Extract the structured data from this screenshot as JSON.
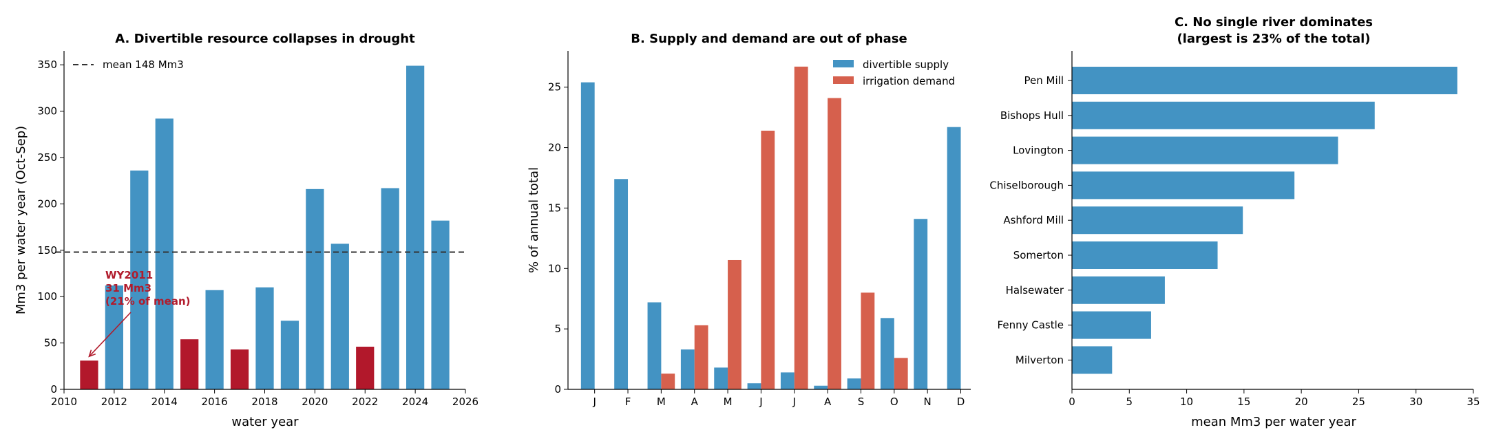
{
  "colors": {
    "wet_bar": "#4393c3",
    "drought_bar": "#b2182b",
    "supply": "#4393c3",
    "demand": "#d6604d",
    "mean_line": "#333333"
  },
  "chart_data": [
    {
      "type": "bar",
      "title": "A. Divertible resource collapses in drought",
      "xlabel": "water year",
      "ylabel": "Mm3 per water year (Oct-Sep)",
      "xlim": [
        2010,
        2026
      ],
      "ylim": [
        0,
        365
      ],
      "xticks": [
        "2010",
        "2012",
        "2014",
        "2016",
        "2018",
        "2020",
        "2022",
        "2024",
        "2026"
      ],
      "yticks": [
        "0",
        "50",
        "100",
        "150",
        "200",
        "250",
        "300",
        "350"
      ],
      "x": [
        2011,
        2012,
        2013,
        2014,
        2015,
        2016,
        2017,
        2018,
        2019,
        2020,
        2021,
        2022,
        2023,
        2024,
        2025
      ],
      "values": [
        31,
        112,
        236,
        292,
        54,
        107,
        43,
        110,
        74,
        216,
        157,
        46,
        217,
        349,
        182
      ],
      "drought_years": [
        2011,
        2015,
        2017,
        2022
      ],
      "reference_line": {
        "value": 148,
        "label": "mean 148 Mm3"
      },
      "legend_position": "upper left",
      "annotation": {
        "lines": [
          "WY2011",
          "31 Mm3",
          "(21% of mean)"
        ],
        "target_x": 2011,
        "target_y": 31
      }
    },
    {
      "type": "bar",
      "title": "B. Supply and demand are out of phase",
      "xlabel": "",
      "ylabel": "% of annual total",
      "ylim": [
        0,
        28
      ],
      "yticks": [
        "0",
        "5",
        "10",
        "15",
        "20",
        "25"
      ],
      "categories": [
        "J",
        "F",
        "M",
        "A",
        "M",
        "J",
        "J",
        "A",
        "S",
        "O",
        "N",
        "D"
      ],
      "series": [
        {
          "name": "divertible supply",
          "values": [
            25.4,
            17.4,
            7.2,
            3.3,
            1.8,
            0.5,
            1.4,
            0.3,
            0.9,
            5.9,
            14.1,
            21.7
          ]
        },
        {
          "name": "irrigation demand",
          "values": [
            0,
            0,
            1.3,
            5.3,
            10.7,
            21.4,
            26.7,
            24.1,
            8.0,
            2.6,
            0,
            0
          ]
        }
      ],
      "legend_position": "upper right"
    },
    {
      "type": "bar",
      "orientation": "horizontal",
      "title": "C. No single river dominates",
      "subtitle": "(largest is 23% of the total)",
      "xlabel": "mean Mm3 per water year",
      "ylabel": "",
      "xlim": [
        0,
        35
      ],
      "xticks": [
        "0",
        "5",
        "10",
        "15",
        "20",
        "25",
        "30",
        "35"
      ],
      "categories": [
        "Pen Mill",
        "Bishops Hull",
        "Lovington",
        "Chiselborough",
        "Ashford Mill",
        "Somerton",
        "Halsewater",
        "Fenny Castle",
        "Milverton"
      ],
      "values": [
        33.6,
        26.4,
        23.2,
        19.4,
        14.9,
        12.7,
        8.1,
        6.9,
        3.5
      ]
    }
  ]
}
